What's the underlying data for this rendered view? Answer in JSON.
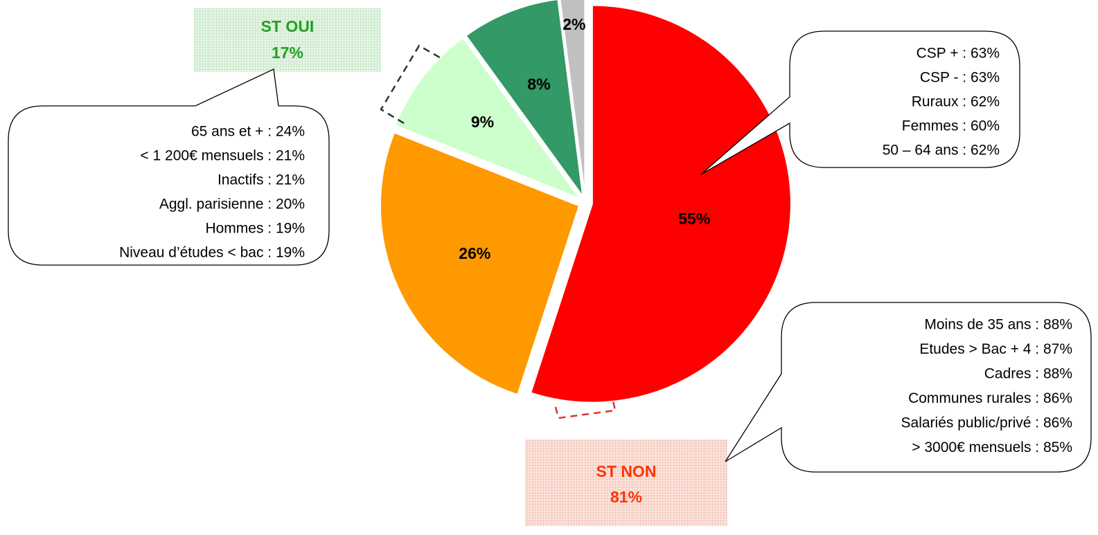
{
  "chart_data": {
    "type": "pie",
    "values": [
      55,
      26,
      9,
      8,
      2
    ],
    "value_labels": [
      "55%",
      "26%",
      "9%",
      "8%",
      "2%"
    ],
    "colors": [
      "#ff0000",
      "#ff9900",
      "#ccffcc",
      "#339966",
      "#c0c0c0"
    ],
    "annotations": {
      "st_oui": [
        "ST OUI",
        "17%"
      ],
      "st_non": [
        "ST NON",
        "81%"
      ],
      "oui_profile": [
        "65 ans et + : 24%",
        "< 1 200€ mensuels : 21%",
        "Inactifs : 21%",
        "Aggl. parisienne : 20%",
        "Hommes : 19%",
        "Niveau d’études < bac : 19%"
      ],
      "red_profile": [
        "CSP + : 63%",
        "CSP - : 63%",
        "Ruraux : 62%",
        "Femmes : 60%",
        "50 – 64 ans : 62%"
      ],
      "non_profile": [
        "Moins de 35 ans : 88%",
        "Etudes > Bac + 4 : 87%",
        "Cadres : 88%",
        "Communes rurales : 86%",
        "Salariés public/privé : 86%",
        "> 3000€ mensuels : 85%"
      ]
    }
  }
}
